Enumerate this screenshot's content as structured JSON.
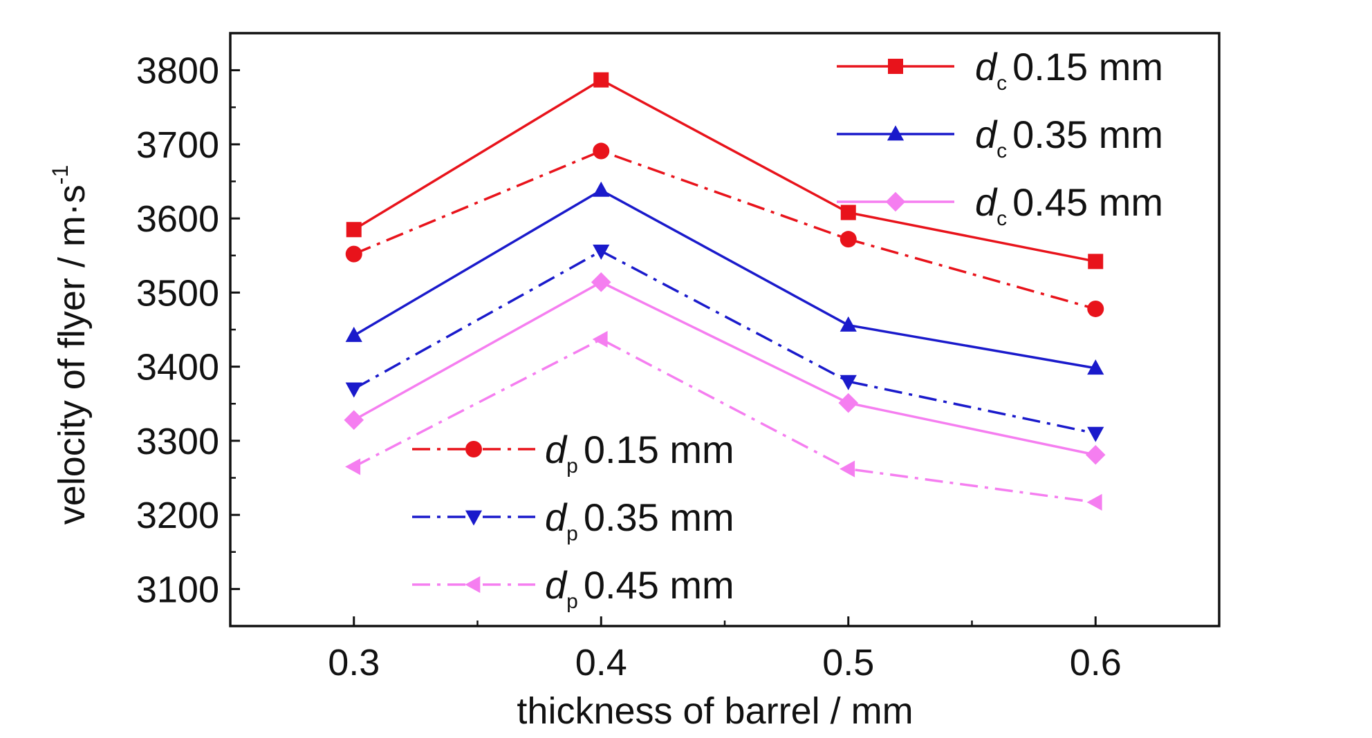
{
  "chart_data": {
    "type": "line",
    "title": "",
    "xlabel": "thickness of barrel / mm",
    "ylabel": {
      "text": "velocity of flyer / m·s",
      "superscript": "-1"
    },
    "x": [
      0.3,
      0.4,
      0.5,
      0.6
    ],
    "x_ticks": [
      "0.3",
      "0.4",
      "0.5",
      "0.6"
    ],
    "xlim": [
      0.25,
      0.65
    ],
    "y_ticks": [
      "3100",
      "3200",
      "3300",
      "3400",
      "3500",
      "3600",
      "3700",
      "3800"
    ],
    "ylim": [
      3050,
      3850
    ],
    "grid": false,
    "series": [
      {
        "name": "d_c 0.15 mm",
        "symbol": "d",
        "subscript": "c",
        "value_label": "0.15 mm",
        "color": "#e8131b",
        "dash": "solid",
        "marker": "square",
        "values": [
          3585,
          3787,
          3608,
          3542
        ]
      },
      {
        "name": "d_c 0.35 mm",
        "symbol": "d",
        "subscript": "c",
        "value_label": "0.35 mm",
        "color": "#1a1acb",
        "dash": "solid",
        "marker": "triangle-up",
        "values": [
          3442,
          3638,
          3456,
          3398
        ]
      },
      {
        "name": "d_c 0.45 mm",
        "symbol": "d",
        "subscript": "c",
        "value_label": "0.45 mm",
        "color": "#f57ef0",
        "dash": "solid",
        "marker": "diamond",
        "values": [
          3328,
          3514,
          3351,
          3281
        ]
      },
      {
        "name": "d_p 0.15 mm",
        "symbol": "d",
        "subscript": "p",
        "value_label": "0.15 mm",
        "color": "#e8131b",
        "dash": "dashdot",
        "marker": "circle",
        "values": [
          3552,
          3691,
          3572,
          3478
        ]
      },
      {
        "name": "d_p 0.35 mm",
        "symbol": "d",
        "subscript": "p",
        "value_label": "0.35 mm",
        "color": "#1a1acb",
        "dash": "dashdot",
        "marker": "triangle-down",
        "values": [
          3370,
          3556,
          3380,
          3310
        ]
      },
      {
        "name": "d_p 0.45 mm",
        "symbol": "d",
        "subscript": "p",
        "value_label": "0.45 mm",
        "color": "#f57ef0",
        "dash": "dashdot",
        "marker": "triangle-left",
        "values": [
          3265,
          3437,
          3262,
          3217
        ]
      }
    ],
    "legends": [
      {
        "placement": "top-right",
        "series_indices": [
          0,
          1,
          2
        ]
      },
      {
        "placement": "bottom-left",
        "series_indices": [
          3,
          4,
          5
        ]
      }
    ]
  }
}
